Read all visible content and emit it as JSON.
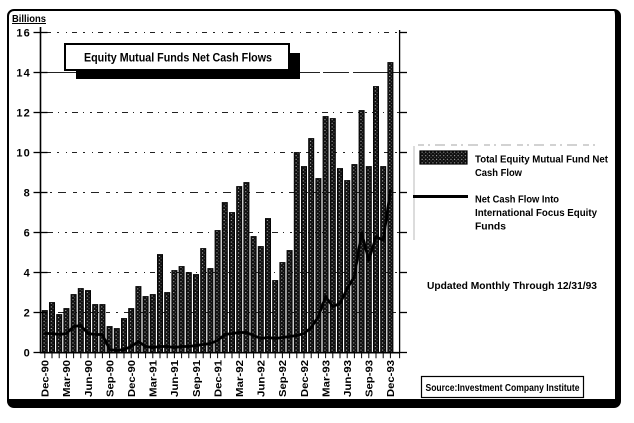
{
  "page": {
    "y_axis_title": "Billions",
    "title": "Equity Mutual Funds Net Cash Flows",
    "legend": {
      "bar_label_lines": [
        "Total Equity Mutual Fund Net",
        "Cash Flow"
      ],
      "line_label_lines": [
        "Net Cash Flow Into",
        "International Focus Equity",
        "Funds"
      ]
    },
    "updated_note": "Updated Monthly Through 12/31/93",
    "source_note": "Source:Investment Company Institute"
  },
  "colors": {
    "ink": "#000000",
    "paper": "#ffffff"
  },
  "chart_data": {
    "type": "bar",
    "title": "Equity Mutual Funds Net Cash Flows",
    "ylabel": "Billions",
    "ylim": [
      0,
      16
    ],
    "y_ticks": [
      0,
      2,
      4,
      6,
      8,
      10,
      12,
      14,
      16
    ],
    "grid": "horizontal-dashed",
    "legend_position": "right",
    "x_tick_labels": [
      "Dec-90",
      "Mar-90",
      "Jun-90",
      "Sep-90",
      "Dec-90",
      "Mar-91",
      "Jun-91",
      "Sep-91",
      "Dec-91",
      "Mar-92",
      "Jun-92",
      "Sep-92",
      "Dec-92",
      "Mar-93",
      "Jun-93",
      "Sep-93",
      "Dec-93"
    ],
    "x_tick_every_n_bars": 3,
    "n_bars": 49,
    "series": [
      {
        "name": "Total Equity Mutual Fund Net Cash Flow",
        "type": "bar",
        "values": [
          2.1,
          2.5,
          1.9,
          2.2,
          2.9,
          3.2,
          3.1,
          2.4,
          2.4,
          1.3,
          1.2,
          1.7,
          2.2,
          3.3,
          2.8,
          2.9,
          4.9,
          3.0,
          4.1,
          4.3,
          4.0,
          3.9,
          5.2,
          4.2,
          6.1,
          7.5,
          7.0,
          8.3,
          8.5,
          5.8,
          5.3,
          6.7,
          3.6,
          4.5,
          5.1,
          10.0,
          9.3,
          10.7,
          8.7,
          11.8,
          11.7,
          9.2,
          8.6,
          9.4,
          12.1,
          9.3,
          13.3,
          9.3,
          14.5
        ]
      },
      {
        "name": "Net Cash Flow Into International Focus Equity Funds",
        "type": "line",
        "values": [
          0.95,
          0.95,
          0.9,
          0.95,
          1.3,
          1.35,
          0.95,
          0.9,
          0.9,
          0.15,
          0.1,
          0.15,
          0.3,
          0.55,
          0.3,
          0.25,
          0.3,
          0.3,
          0.25,
          0.3,
          0.3,
          0.35,
          0.4,
          0.45,
          0.6,
          0.9,
          0.95,
          1.0,
          1.0,
          0.85,
          0.7,
          0.75,
          0.7,
          0.75,
          0.8,
          0.85,
          0.95,
          1.25,
          1.8,
          2.8,
          2.3,
          2.45,
          3.2,
          3.8,
          6.0,
          4.6,
          5.8,
          5.6,
          8.1
        ]
      }
    ]
  }
}
